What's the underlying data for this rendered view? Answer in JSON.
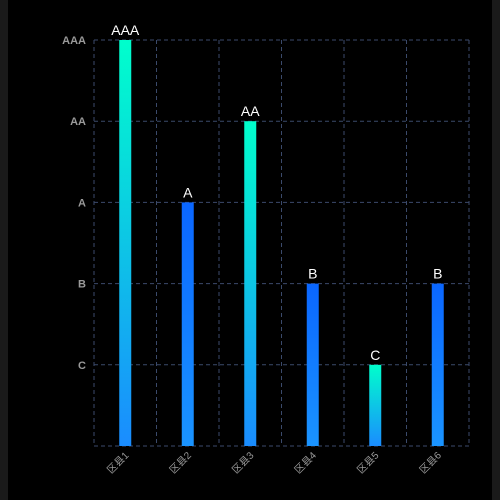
{
  "chart_data": {
    "type": "bar",
    "categories": [
      "区县1",
      "区县2",
      "区县3",
      "区县4",
      "区县5",
      "区县6"
    ],
    "y_tick_labels": [
      "C",
      "B",
      "A",
      "AA",
      "AAA"
    ],
    "ylim": [
      0,
      5
    ],
    "values": [
      5,
      3,
      4,
      2,
      1,
      2
    ],
    "data_labels": [
      "AAA",
      "A",
      "AA",
      "B",
      "C",
      "B"
    ],
    "grid": true,
    "colors": {
      "background": "#000000",
      "grid": "#3b4a6b",
      "axis_text": "#9a9a9a",
      "data_label": "#ffffff",
      "bar_cyan_top": "#00ffcc",
      "bar_cyan_bottom": "#1a8cff",
      "bar_blue_top": "#0a66ff",
      "bar_blue_bottom": "#1a94ff"
    }
  }
}
